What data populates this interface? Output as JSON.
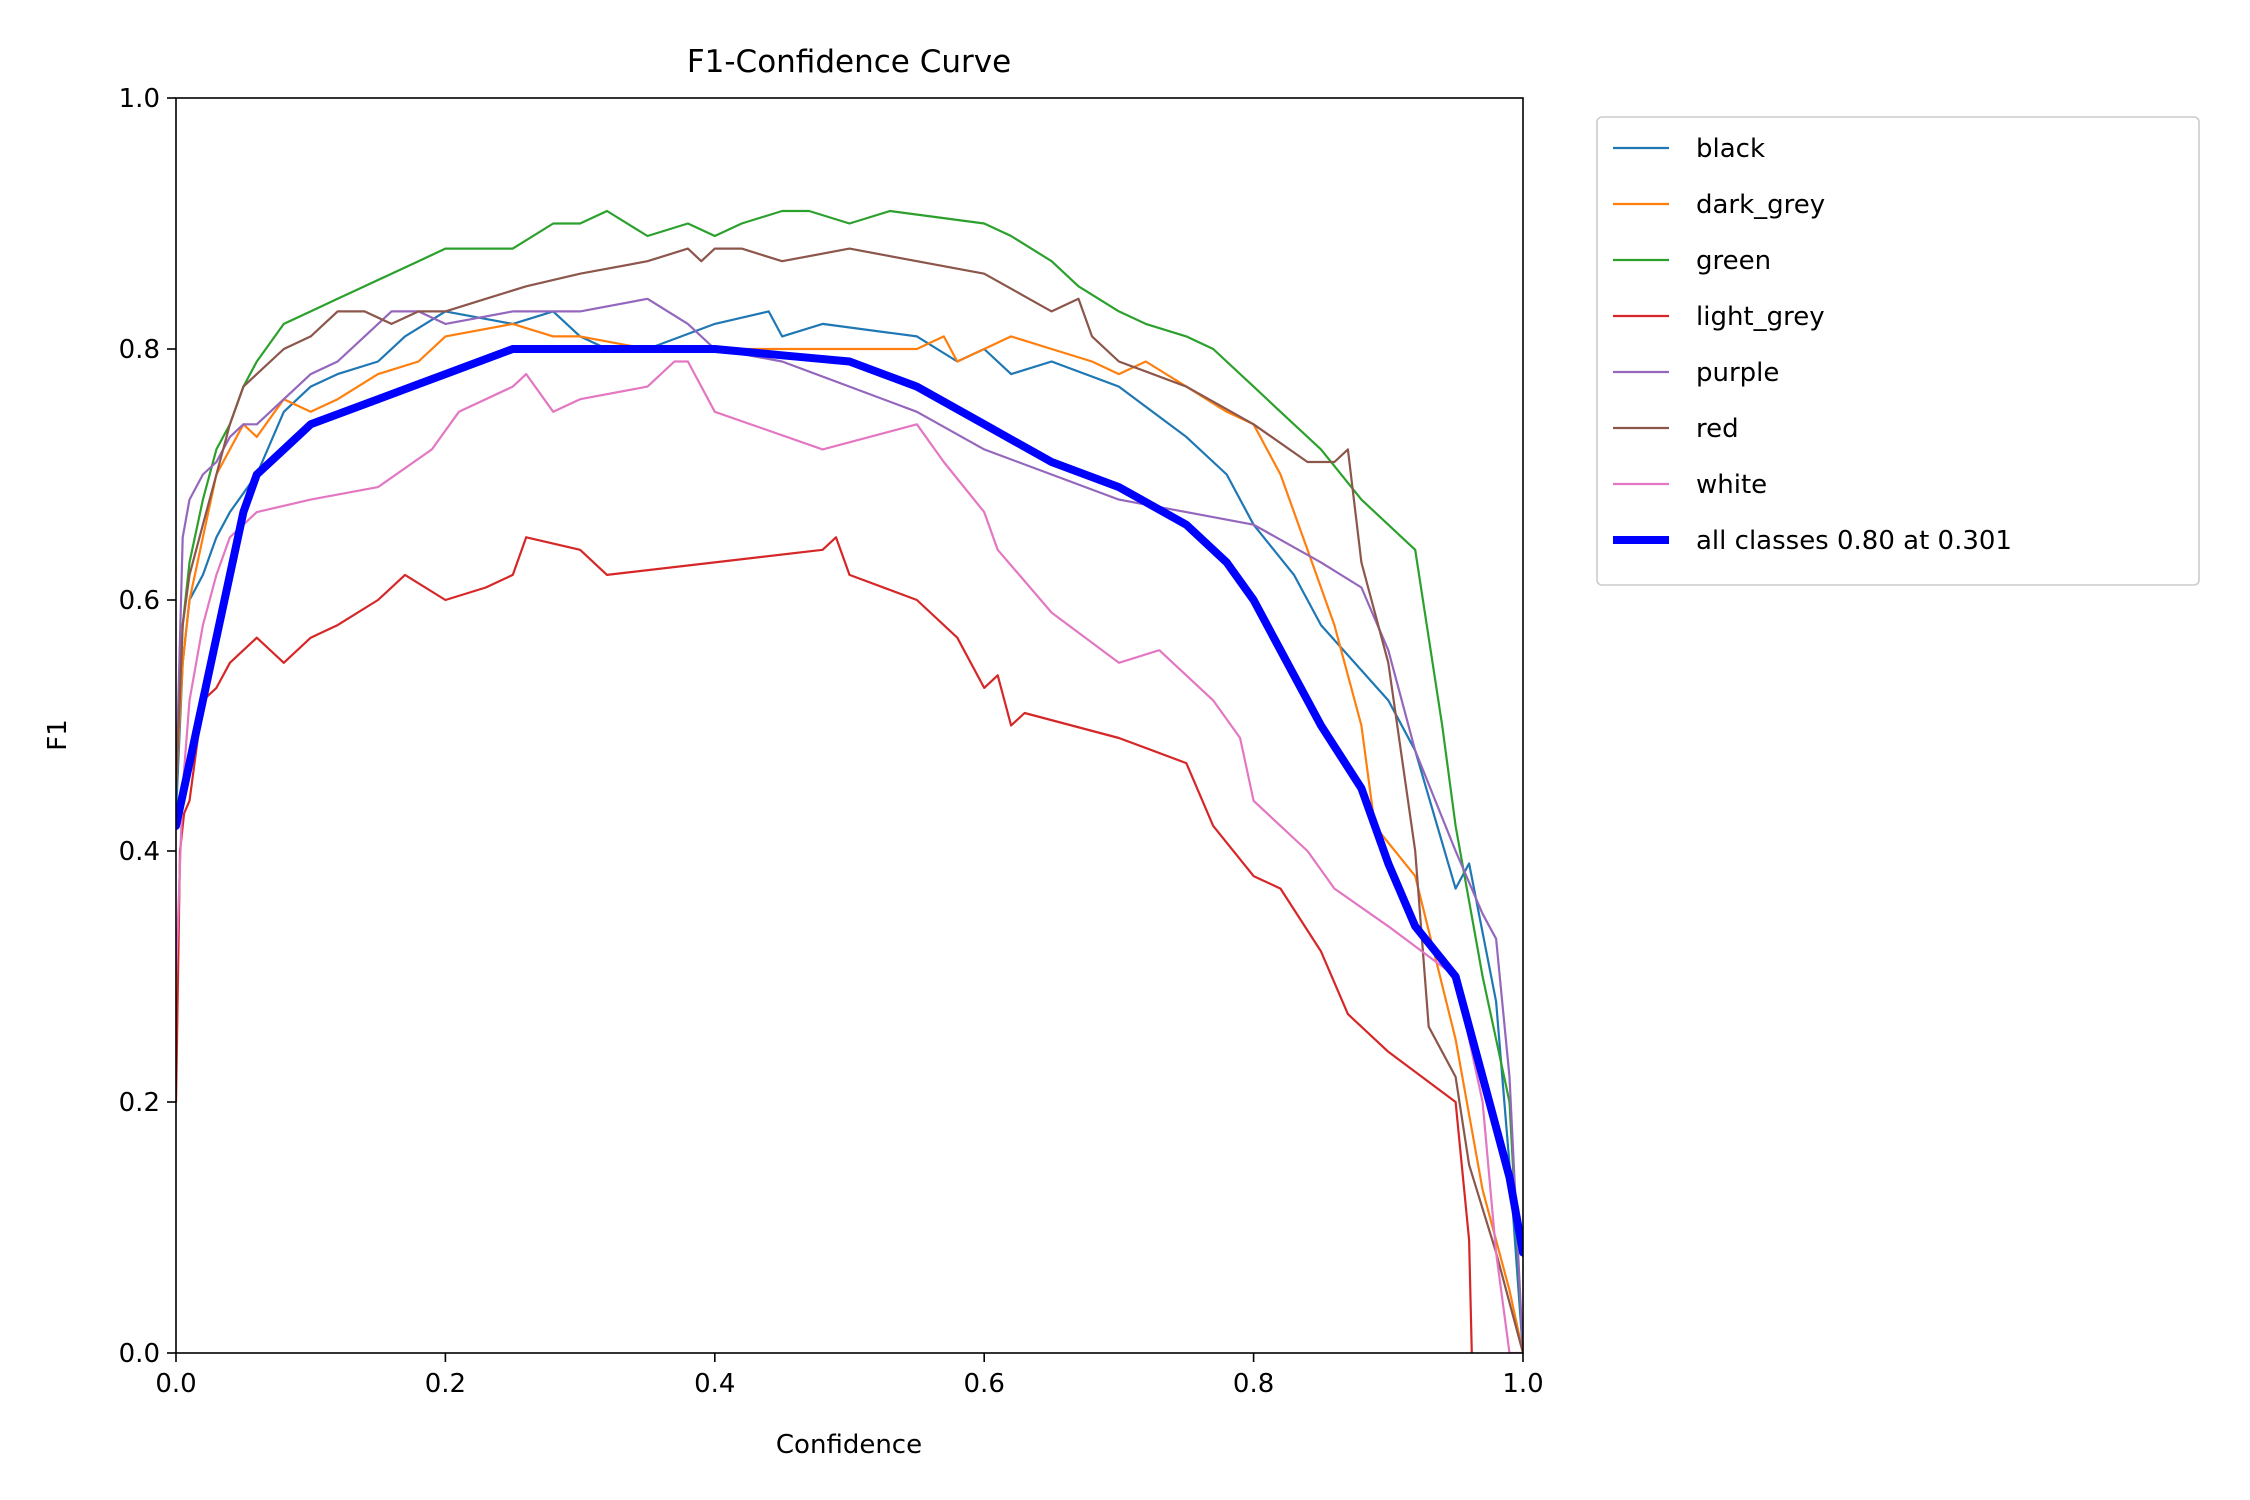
{
  "chart_data": {
    "type": "line",
    "title": "F1-Confidence Curve",
    "xlabel": "Confidence",
    "ylabel": "F1",
    "xlim": [
      0,
      1
    ],
    "ylim": [
      0,
      1
    ],
    "xticks": [
      "0.0",
      "0.2",
      "0.4",
      "0.6",
      "0.8",
      "1.0"
    ],
    "yticks": [
      "0.0",
      "0.2",
      "0.4",
      "0.6",
      "0.8",
      "1.0"
    ],
    "grid": false,
    "legend_position": "outside-right",
    "series": [
      {
        "name": "black",
        "color": "#1f77b4",
        "width": "thin",
        "x": [
          0.0,
          0.005,
          0.01,
          0.02,
          0.03,
          0.04,
          0.06,
          0.08,
          0.1,
          0.12,
          0.15,
          0.17,
          0.2,
          0.25,
          0.28,
          0.3,
          0.32,
          0.35,
          0.4,
          0.44,
          0.45,
          0.48,
          0.55,
          0.58,
          0.6,
          0.62,
          0.65,
          0.7,
          0.75,
          0.78,
          0.8,
          0.83,
          0.85,
          0.9,
          0.92,
          0.95,
          0.96,
          0.98,
          0.99,
          1.0
        ],
        "y": [
          0.43,
          0.55,
          0.6,
          0.62,
          0.65,
          0.67,
          0.7,
          0.75,
          0.77,
          0.78,
          0.79,
          0.81,
          0.83,
          0.82,
          0.83,
          0.81,
          0.8,
          0.8,
          0.82,
          0.83,
          0.81,
          0.82,
          0.81,
          0.79,
          0.8,
          0.78,
          0.79,
          0.77,
          0.73,
          0.7,
          0.66,
          0.62,
          0.58,
          0.52,
          0.48,
          0.37,
          0.39,
          0.28,
          0.15,
          0.0
        ]
      },
      {
        "name": "dark_grey",
        "color": "#ff7f0e",
        "width": "thin",
        "x": [
          0.0,
          0.005,
          0.01,
          0.02,
          0.03,
          0.04,
          0.05,
          0.06,
          0.08,
          0.1,
          0.12,
          0.15,
          0.18,
          0.2,
          0.25,
          0.28,
          0.3,
          0.35,
          0.4,
          0.45,
          0.5,
          0.55,
          0.57,
          0.58,
          0.6,
          0.62,
          0.65,
          0.68,
          0.7,
          0.72,
          0.75,
          0.78,
          0.8,
          0.82,
          0.84,
          0.86,
          0.88,
          0.89,
          0.92,
          0.95,
          0.97,
          0.99,
          1.0
        ],
        "y": [
          0.45,
          0.55,
          0.6,
          0.65,
          0.7,
          0.72,
          0.74,
          0.73,
          0.76,
          0.75,
          0.76,
          0.78,
          0.79,
          0.81,
          0.82,
          0.81,
          0.81,
          0.8,
          0.8,
          0.8,
          0.8,
          0.8,
          0.81,
          0.79,
          0.8,
          0.81,
          0.8,
          0.79,
          0.78,
          0.79,
          0.77,
          0.75,
          0.74,
          0.7,
          0.64,
          0.58,
          0.5,
          0.42,
          0.38,
          0.25,
          0.13,
          0.05,
          0.0
        ]
      },
      {
        "name": "green",
        "color": "#2ca02c",
        "width": "thin",
        "x": [
          0.0,
          0.005,
          0.01,
          0.02,
          0.03,
          0.04,
          0.05,
          0.06,
          0.08,
          0.1,
          0.12,
          0.14,
          0.16,
          0.18,
          0.2,
          0.22,
          0.25,
          0.28,
          0.3,
          0.32,
          0.35,
          0.38,
          0.4,
          0.42,
          0.45,
          0.47,
          0.5,
          0.53,
          0.6,
          0.62,
          0.65,
          0.67,
          0.7,
          0.72,
          0.75,
          0.77,
          0.8,
          0.82,
          0.85,
          0.88,
          0.9,
          0.92,
          0.94,
          0.95,
          0.97,
          0.98,
          0.99,
          1.0
        ],
        "y": [
          0.45,
          0.58,
          0.63,
          0.68,
          0.72,
          0.74,
          0.77,
          0.79,
          0.82,
          0.83,
          0.84,
          0.85,
          0.86,
          0.87,
          0.88,
          0.88,
          0.88,
          0.9,
          0.9,
          0.91,
          0.89,
          0.9,
          0.89,
          0.9,
          0.91,
          0.91,
          0.9,
          0.91,
          0.9,
          0.89,
          0.87,
          0.85,
          0.83,
          0.82,
          0.81,
          0.8,
          0.77,
          0.75,
          0.72,
          0.68,
          0.66,
          0.64,
          0.5,
          0.42,
          0.3,
          0.25,
          0.2,
          0.0
        ]
      },
      {
        "name": "light_grey",
        "color": "#d62728",
        "width": "thin",
        "x": [
          0.0,
          0.003,
          0.006,
          0.01,
          0.02,
          0.03,
          0.04,
          0.05,
          0.06,
          0.08,
          0.1,
          0.12,
          0.15,
          0.17,
          0.2,
          0.23,
          0.25,
          0.26,
          0.3,
          0.32,
          0.4,
          0.48,
          0.49,
          0.5,
          0.55,
          0.58,
          0.6,
          0.61,
          0.62,
          0.63,
          0.7,
          0.75,
          0.77,
          0.8,
          0.82,
          0.85,
          0.87,
          0.9,
          0.95,
          0.96,
          0.962
        ],
        "y": [
          0.2,
          0.4,
          0.43,
          0.44,
          0.52,
          0.53,
          0.55,
          0.56,
          0.57,
          0.55,
          0.57,
          0.58,
          0.6,
          0.62,
          0.6,
          0.61,
          0.62,
          0.65,
          0.64,
          0.62,
          0.63,
          0.64,
          0.65,
          0.62,
          0.6,
          0.57,
          0.53,
          0.54,
          0.5,
          0.51,
          0.49,
          0.47,
          0.42,
          0.38,
          0.37,
          0.32,
          0.27,
          0.24,
          0.2,
          0.09,
          0.0
        ]
      },
      {
        "name": "purple",
        "color": "#9467bd",
        "width": "thin",
        "x": [
          0.0,
          0.005,
          0.01,
          0.02,
          0.03,
          0.04,
          0.05,
          0.06,
          0.08,
          0.1,
          0.12,
          0.14,
          0.16,
          0.18,
          0.2,
          0.25,
          0.3,
          0.35,
          0.38,
          0.4,
          0.45,
          0.5,
          0.55,
          0.6,
          0.65,
          0.7,
          0.75,
          0.8,
          0.85,
          0.88,
          0.9,
          0.92,
          0.95,
          0.97,
          0.98,
          0.99,
          1.0
        ],
        "y": [
          0.45,
          0.65,
          0.68,
          0.7,
          0.71,
          0.73,
          0.74,
          0.74,
          0.76,
          0.78,
          0.79,
          0.81,
          0.83,
          0.83,
          0.82,
          0.83,
          0.83,
          0.84,
          0.82,
          0.8,
          0.79,
          0.77,
          0.75,
          0.72,
          0.7,
          0.68,
          0.67,
          0.66,
          0.63,
          0.61,
          0.56,
          0.48,
          0.4,
          0.35,
          0.33,
          0.22,
          0.0
        ]
      },
      {
        "name": "red",
        "color": "#8c564b",
        "width": "thin",
        "x": [
          0.0,
          0.005,
          0.01,
          0.02,
          0.03,
          0.04,
          0.05,
          0.06,
          0.08,
          0.1,
          0.12,
          0.14,
          0.16,
          0.18,
          0.2,
          0.23,
          0.26,
          0.3,
          0.35,
          0.38,
          0.39,
          0.4,
          0.42,
          0.45,
          0.5,
          0.6,
          0.65,
          0.67,
          0.68,
          0.7,
          0.75,
          0.8,
          0.84,
          0.86,
          0.87,
          0.88,
          0.9,
          0.92,
          0.93,
          0.95,
          0.96,
          0.98,
          1.0
        ],
        "y": [
          0.45,
          0.58,
          0.62,
          0.66,
          0.7,
          0.74,
          0.77,
          0.78,
          0.8,
          0.81,
          0.83,
          0.83,
          0.82,
          0.83,
          0.83,
          0.84,
          0.85,
          0.86,
          0.87,
          0.88,
          0.87,
          0.88,
          0.88,
          0.87,
          0.88,
          0.86,
          0.83,
          0.84,
          0.81,
          0.79,
          0.77,
          0.74,
          0.71,
          0.71,
          0.72,
          0.63,
          0.55,
          0.4,
          0.26,
          0.22,
          0.15,
          0.08,
          0.0
        ]
      },
      {
        "name": "white",
        "color": "#e377c2",
        "width": "thin",
        "x": [
          0.0,
          0.005,
          0.01,
          0.02,
          0.03,
          0.04,
          0.06,
          0.1,
          0.15,
          0.19,
          0.21,
          0.25,
          0.26,
          0.28,
          0.3,
          0.35,
          0.37,
          0.38,
          0.4,
          0.48,
          0.55,
          0.57,
          0.6,
          0.61,
          0.65,
          0.7,
          0.73,
          0.77,
          0.79,
          0.8,
          0.83,
          0.84,
          0.86,
          0.9,
          0.95,
          0.97,
          0.98,
          0.99,
          1.0
        ],
        "y": [
          0.3,
          0.45,
          0.52,
          0.58,
          0.62,
          0.65,
          0.67,
          0.68,
          0.69,
          0.72,
          0.75,
          0.77,
          0.78,
          0.75,
          0.76,
          0.77,
          0.79,
          0.79,
          0.75,
          0.72,
          0.74,
          0.71,
          0.67,
          0.64,
          0.59,
          0.55,
          0.56,
          0.52,
          0.49,
          0.44,
          0.41,
          0.4,
          0.37,
          0.34,
          0.3,
          0.2,
          0.08,
          0.0,
          0.0
        ]
      },
      {
        "name": "all classes 0.80 at 0.301",
        "color": "#0000ff",
        "width": "thick",
        "x": [
          0.0,
          0.01,
          0.02,
          0.03,
          0.04,
          0.05,
          0.06,
          0.08,
          0.1,
          0.15,
          0.2,
          0.25,
          0.3,
          0.35,
          0.4,
          0.45,
          0.5,
          0.55,
          0.6,
          0.65,
          0.7,
          0.75,
          0.78,
          0.8,
          0.82,
          0.85,
          0.88,
          0.9,
          0.92,
          0.95,
          0.97,
          0.99,
          1.0
        ],
        "y": [
          0.42,
          0.47,
          0.52,
          0.57,
          0.62,
          0.67,
          0.7,
          0.72,
          0.74,
          0.76,
          0.78,
          0.8,
          0.8,
          0.8,
          0.8,
          0.795,
          0.79,
          0.77,
          0.74,
          0.71,
          0.69,
          0.66,
          0.63,
          0.6,
          0.56,
          0.5,
          0.45,
          0.39,
          0.34,
          0.3,
          0.22,
          0.14,
          0.08
        ]
      }
    ]
  }
}
